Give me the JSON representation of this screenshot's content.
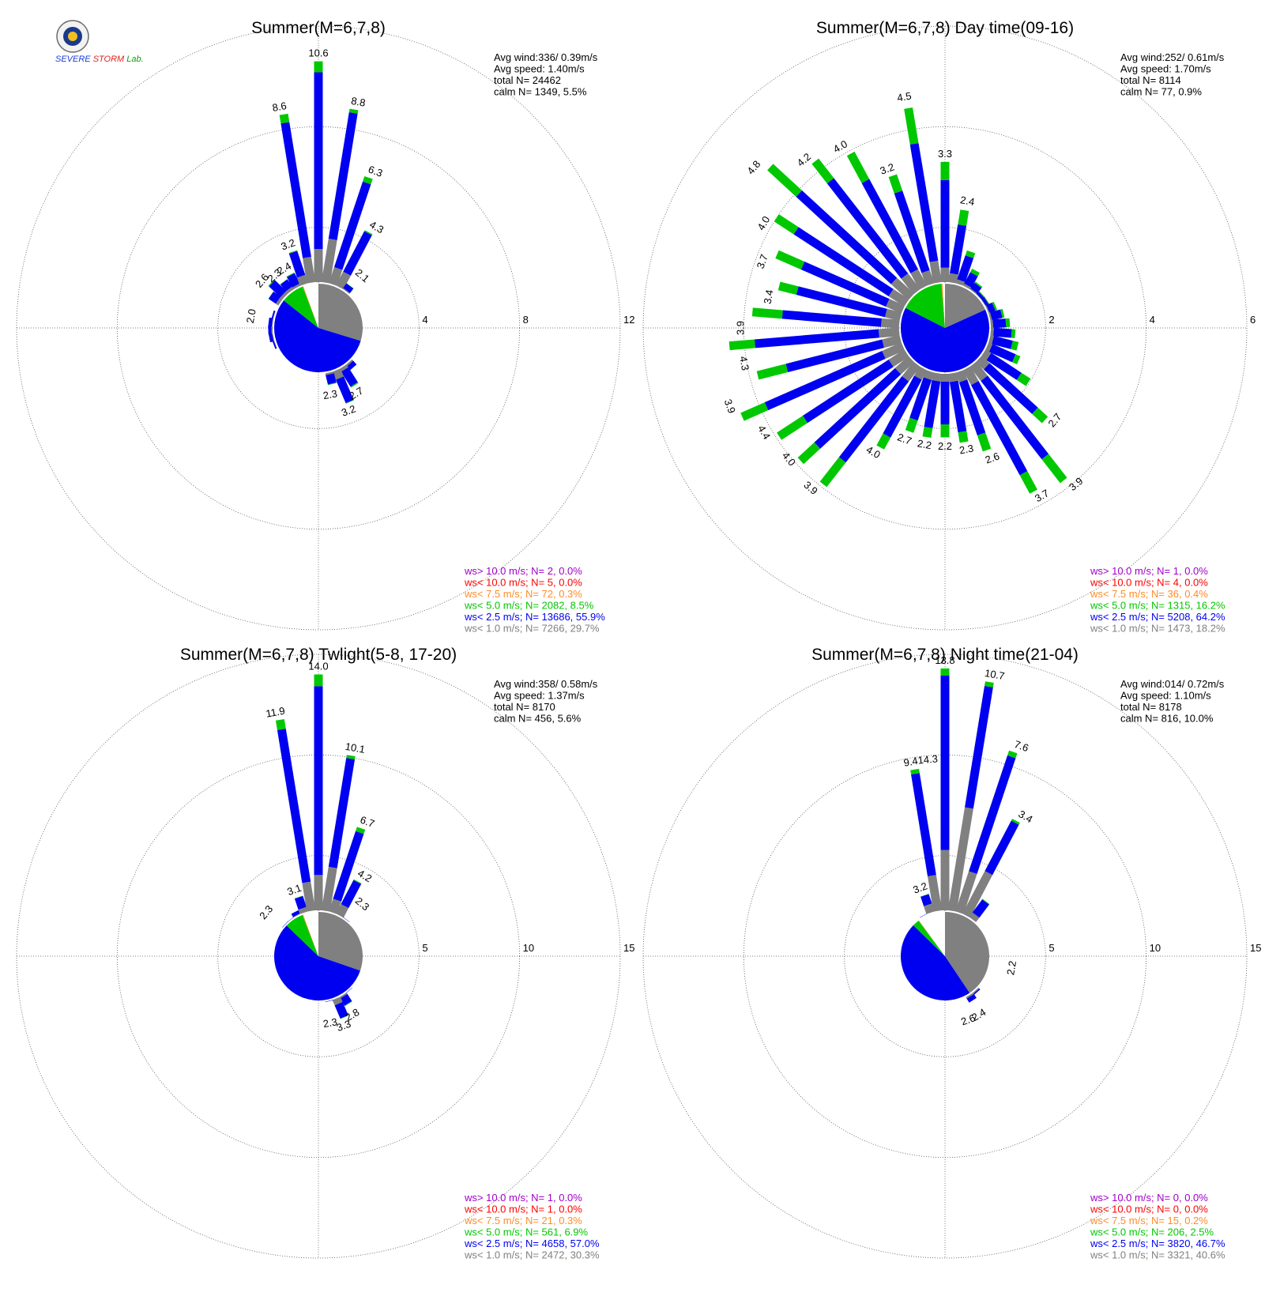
{
  "logo": {
    "name": "Severe Storm Lab.",
    "text": "SEVERE STORM Lab."
  },
  "colors": {
    "gt10": "#a000c8",
    "lt10": "#ff0000",
    "lt7_5": "#ff8c28",
    "lt5": "#00c800",
    "lt2_5": "#0000f0",
    "lt1": "#808080",
    "calm": "#ffffff",
    "grid": "#555555"
  },
  "chart_data": [
    {
      "type": "wind_rose",
      "title": "Summer(M=6,7,8)",
      "stats": [
        "Avg wind:336/ 0.39m/s",
        "Avg speed: 1.40m/s",
        "total N=       24462",
        "calm N=   1349,   5.5%"
      ],
      "rings": [
        4,
        8,
        12
      ],
      "ring_labels": [
        "4",
        "8",
        "12"
      ],
      "rmax": 12,
      "pie": [
        29.7,
        55.9,
        8.5,
        0.3,
        0.0,
        0.0,
        5.5
      ],
      "sector_totals": [
        10.6,
        8.8,
        6.3,
        4.3,
        2.1,
        1.5,
        1.1,
        0.9,
        0.9,
        0.9,
        1.1,
        1.3,
        1.5,
        1.5,
        1.7,
        2.1,
        2.7,
        3.2,
        2.3,
        1.7,
        1.4,
        1.3,
        1.2,
        1.3,
        1.4,
        1.6,
        1.8,
        1.9,
        2.0,
        2.0,
        2.0,
        1.9,
        1.7,
        2.3,
        2.6,
        2.3,
        2.4,
        3.2,
        8.6
      ],
      "sector_comp": [
        [
          0.15,
          0.8,
          0.05
        ],
        [
          0.25,
          0.73,
          0.02
        ]
      ],
      "labels": [
        {
          "dir": 0,
          "text": "10.6"
        },
        {
          "dir": 10,
          "text": "8.8"
        },
        {
          "dir": 20,
          "text": "6.3"
        },
        {
          "dir": 30,
          "text": "4.3"
        },
        {
          "dir": 40,
          "text": "2.1"
        },
        {
          "dir": 150,
          "text": "2.7"
        },
        {
          "dir": 160,
          "text": "3.2"
        },
        {
          "dir": 170,
          "text": "2.3"
        },
        {
          "dir": 280,
          "text": "2.0"
        },
        {
          "dir": 310,
          "text": "2.6"
        },
        {
          "dir": 320,
          "text": "2.3"
        },
        {
          "dir": 330,
          "text": "2.4"
        },
        {
          "dir": 340,
          "text": "3.2"
        },
        {
          "dir": 350,
          "text": "8.6"
        }
      ],
      "legend": [
        {
          "key": "gt10",
          "text": "ws> 10.0 m/s; N=     2,  0.0%"
        },
        {
          "key": "lt10",
          "text": "ws< 10.0 m/s; N=     5,  0.0%"
        },
        {
          "key": "lt7_5",
          "text": "ws<  7.5 m/s; N=    72,  0.3%"
        },
        {
          "key": "lt5",
          "text": "ws<  5.0 m/s; N=  2082,  8.5%"
        },
        {
          "key": "lt2_5",
          "text": "ws<  2.5 m/s; N= 13686, 55.9%"
        },
        {
          "key": "lt1",
          "text": "ws<  1.0 m/s; N=  7266, 29.7%"
        }
      ]
    },
    {
      "type": "wind_rose",
      "title": "Summer(M=6,7,8) Day time(09-16)",
      "stats": [
        "Avg wind:252/ 0.61m/s",
        "Avg speed: 1.70m/s",
        "total N=        8114",
        "calm N=     77,   0.9%"
      ],
      "rings": [
        2,
        4,
        6
      ],
      "ring_labels": [
        "2",
        "4",
        "6"
      ],
      "rmax": 6,
      "pie": [
        18.2,
        64.2,
        16.2,
        0.4,
        0.0,
        0.0,
        0.9
      ],
      "sector_totals": [
        3.3,
        2.4,
        1.6,
        1.3,
        1.1,
        1.0,
        1.0,
        1.1,
        1.2,
        1.3,
        1.4,
        1.5,
        1.6,
        2.0,
        2.7,
        3.9,
        3.7,
        2.6,
        2.3,
        2.2,
        2.2,
        2.2,
        2.7,
        4.0,
        3.9,
        4.0,
        4.4,
        3.9,
        4.3,
        3.9,
        3.4,
        3.7,
        4.0,
        4.8,
        4.2,
        4.0,
        3.2,
        4.5
      ],
      "sector_comp": [
        [
          0.12,
          0.73,
          0.15
        ],
        [
          0.12,
          0.66,
          0.2
        ]
      ],
      "labels": [
        {
          "dir": 0,
          "text": "3.3"
        },
        {
          "dir": 10,
          "text": "2.4"
        },
        {
          "dir": 130,
          "text": "2.7"
        },
        {
          "dir": 140,
          "text": "3.9"
        },
        {
          "dir": 150,
          "text": "3.7"
        },
        {
          "dir": 160,
          "text": "2.6"
        },
        {
          "dir": 170,
          "text": "2.3"
        },
        {
          "dir": 180,
          "text": "2.2"
        },
        {
          "dir": 190,
          "text": "2.2"
        },
        {
          "dir": 200,
          "text": "2.7"
        },
        {
          "dir": 210,
          "text": "4.0"
        },
        {
          "dir": 220,
          "text": "3.9"
        },
        {
          "dir": 230,
          "text": "4.0"
        },
        {
          "dir": 240,
          "text": "4.4"
        },
        {
          "dir": 250,
          "text": "3.9"
        },
        {
          "dir": 260,
          "text": "4.3"
        },
        {
          "dir": 270,
          "text": "3.9"
        },
        {
          "dir": 280,
          "text": "3.4"
        },
        {
          "dir": 290,
          "text": "3.7"
        },
        {
          "dir": 300,
          "text": "4.0"
        },
        {
          "dir": 310,
          "text": "4.8"
        },
        {
          "dir": 320,
          "text": "4.2"
        },
        {
          "dir": 330,
          "text": "4.0"
        },
        {
          "dir": 340,
          "text": "3.2"
        },
        {
          "dir": 350,
          "text": "4.5"
        }
      ],
      "legend": [
        {
          "key": "gt10",
          "text": "ws> 10.0 m/s; N=     1,  0.0%"
        },
        {
          "key": "lt10",
          "text": "ws< 10.0 m/s; N=     4,  0.0%"
        },
        {
          "key": "lt7_5",
          "text": "ws<  7.5 m/s; N=    36,  0.4%"
        },
        {
          "key": "lt5",
          "text": "ws<  5.0 m/s; N=  1315, 16.2%"
        },
        {
          "key": "lt2_5",
          "text": "ws<  2.5 m/s; N=  5208, 64.2%"
        },
        {
          "key": "lt1",
          "text": "ws<  1.0 m/s; N=  1473, 18.2%"
        }
      ]
    },
    {
      "type": "wind_rose",
      "title": "Summer(M=6,7,8) Twlight(5-8, 17-20)",
      "stats": [
        "Avg wind:358/ 0.58m/s",
        "Avg speed: 1.37m/s",
        "total N=        8170",
        "calm N=    456,   5.6%"
      ],
      "rings": [
        5,
        10,
        15
      ],
      "ring_labels": [
        "5",
        "10",
        "15"
      ],
      "rmax": 15,
      "pie": [
        30.3,
        57.0,
        6.9,
        0.3,
        0.0,
        0.0,
        5.6
      ],
      "sector_totals": [
        14.0,
        10.1,
        6.7,
        4.2,
        2.3,
        1.8,
        1.4,
        1.1,
        1.0,
        1.0,
        1.1,
        1.3,
        1.5,
        1.7,
        1.9,
        2.3,
        2.8,
        3.3,
        2.3,
        1.7,
        1.4,
        1.3,
        1.2,
        1.3,
        1.4,
        1.5,
        1.6,
        1.7,
        1.7,
        1.7,
        1.7,
        1.8,
        1.9,
        2.0,
        2.3,
        2.3,
        2.5,
        3.1,
        11.9
      ],
      "sector_comp": [
        [
          0.15,
          0.8,
          0.05
        ],
        [
          0.28,
          0.7,
          0.02
        ]
      ],
      "labels": [
        {
          "dir": 0,
          "text": "14.0"
        },
        {
          "dir": 10,
          "text": "10.1"
        },
        {
          "dir": 20,
          "text": "6.7"
        },
        {
          "dir": 30,
          "text": "4.2"
        },
        {
          "dir": 40,
          "text": "2.3"
        },
        {
          "dir": 150,
          "text": "2.8"
        },
        {
          "dir": 160,
          "text": "3.3"
        },
        {
          "dir": 170,
          "text": "2.3"
        },
        {
          "dir": 310,
          "text": "2.3"
        },
        {
          "dir": 340,
          "text": "3.1"
        },
        {
          "dir": 350,
          "text": "11.9"
        }
      ],
      "legend": [
        {
          "key": "gt10",
          "text": "ws> 10.0 m/s; N=     1,  0.0%"
        },
        {
          "key": "lt10",
          "text": "ws< 10.0 m/s; N=     1,  0.0%"
        },
        {
          "key": "lt7_5",
          "text": "ws<  7.5 m/s; N=    21,  0.3%"
        },
        {
          "key": "lt5",
          "text": "ws<  5.0 m/s; N=   561,  6.9%"
        },
        {
          "key": "lt2_5",
          "text": "ws<  2.5 m/s; N=  4658, 57.0%"
        },
        {
          "key": "lt1",
          "text": "ws<  1.0 m/s; N=  2472, 30.3%"
        }
      ]
    },
    {
      "type": "wind_rose",
      "title": "Summer(M=6,7,8) Night time(21-04)",
      "stats": [
        "Avg wind:014/ 0.72m/s",
        "Avg speed: 1.10m/s",
        "total N=        8178",
        "calm N=    816,  10.0%"
      ],
      "rings": [
        5,
        10,
        15
      ],
      "ring_labels": [
        "5",
        "10",
        "15"
      ],
      "rmax": 15,
      "pie": [
        40.6,
        46.7,
        2.5,
        0.2,
        0.0,
        0.0,
        10.0
      ],
      "sector_totals": [
        14.3,
        13.8,
        10.7,
        7.6,
        3.4,
        2.1,
        1.6,
        1.3,
        1.2,
        1.3,
        1.6,
        2.2,
        1.8,
        1.6,
        1.9,
        2.4,
        2.6,
        1.6,
        1.3,
        1.1,
        0.9,
        0.8,
        0.7,
        0.7,
        0.7,
        0.8,
        0.8,
        0.9,
        0.9,
        0.9,
        0.9,
        1.0,
        1.1,
        1.3,
        1.5,
        1.8,
        2.3,
        3.2,
        9.4
      ],
      "sector_comp": [
        [
          0.25,
          0.72,
          0.03
        ],
        [
          0.45,
          0.53,
          0.02
        ]
      ],
      "labels": [
        {
          "dir": 0,
          "text": "13.8"
        },
        {
          "dir": 10,
          "text": "10.7"
        },
        {
          "dir": 20,
          "text": "7.6"
        },
        {
          "dir": 30,
          "text": "3.4"
        },
        {
          "dir": 100,
          "text": "2.2"
        },
        {
          "dir": 150,
          "text": "2.4"
        },
        {
          "dir": 160,
          "text": "2.6"
        },
        {
          "dir": 340,
          "text": "3.2"
        },
        {
          "dir": 350,
          "text": "9.4"
        },
        {
          "dir": 355,
          "text": "14.3"
        }
      ],
      "legend": [
        {
          "key": "gt10",
          "text": "ws> 10.0 m/s; N=     0,  0.0%"
        },
        {
          "key": "lt10",
          "text": "ws< 10.0 m/s; N=     0,  0.0%"
        },
        {
          "key": "lt7_5",
          "text": "ws<  7.5 m/s; N=    15,  0.2%"
        },
        {
          "key": "lt5",
          "text": "ws<  5.0 m/s; N=   206,  2.5%"
        },
        {
          "key": "lt2_5",
          "text": "ws<  2.5 m/s; N=  3820, 46.7%"
        },
        {
          "key": "lt1",
          "text": "ws<  1.0 m/s; N=  3321, 40.6%"
        }
      ]
    }
  ]
}
